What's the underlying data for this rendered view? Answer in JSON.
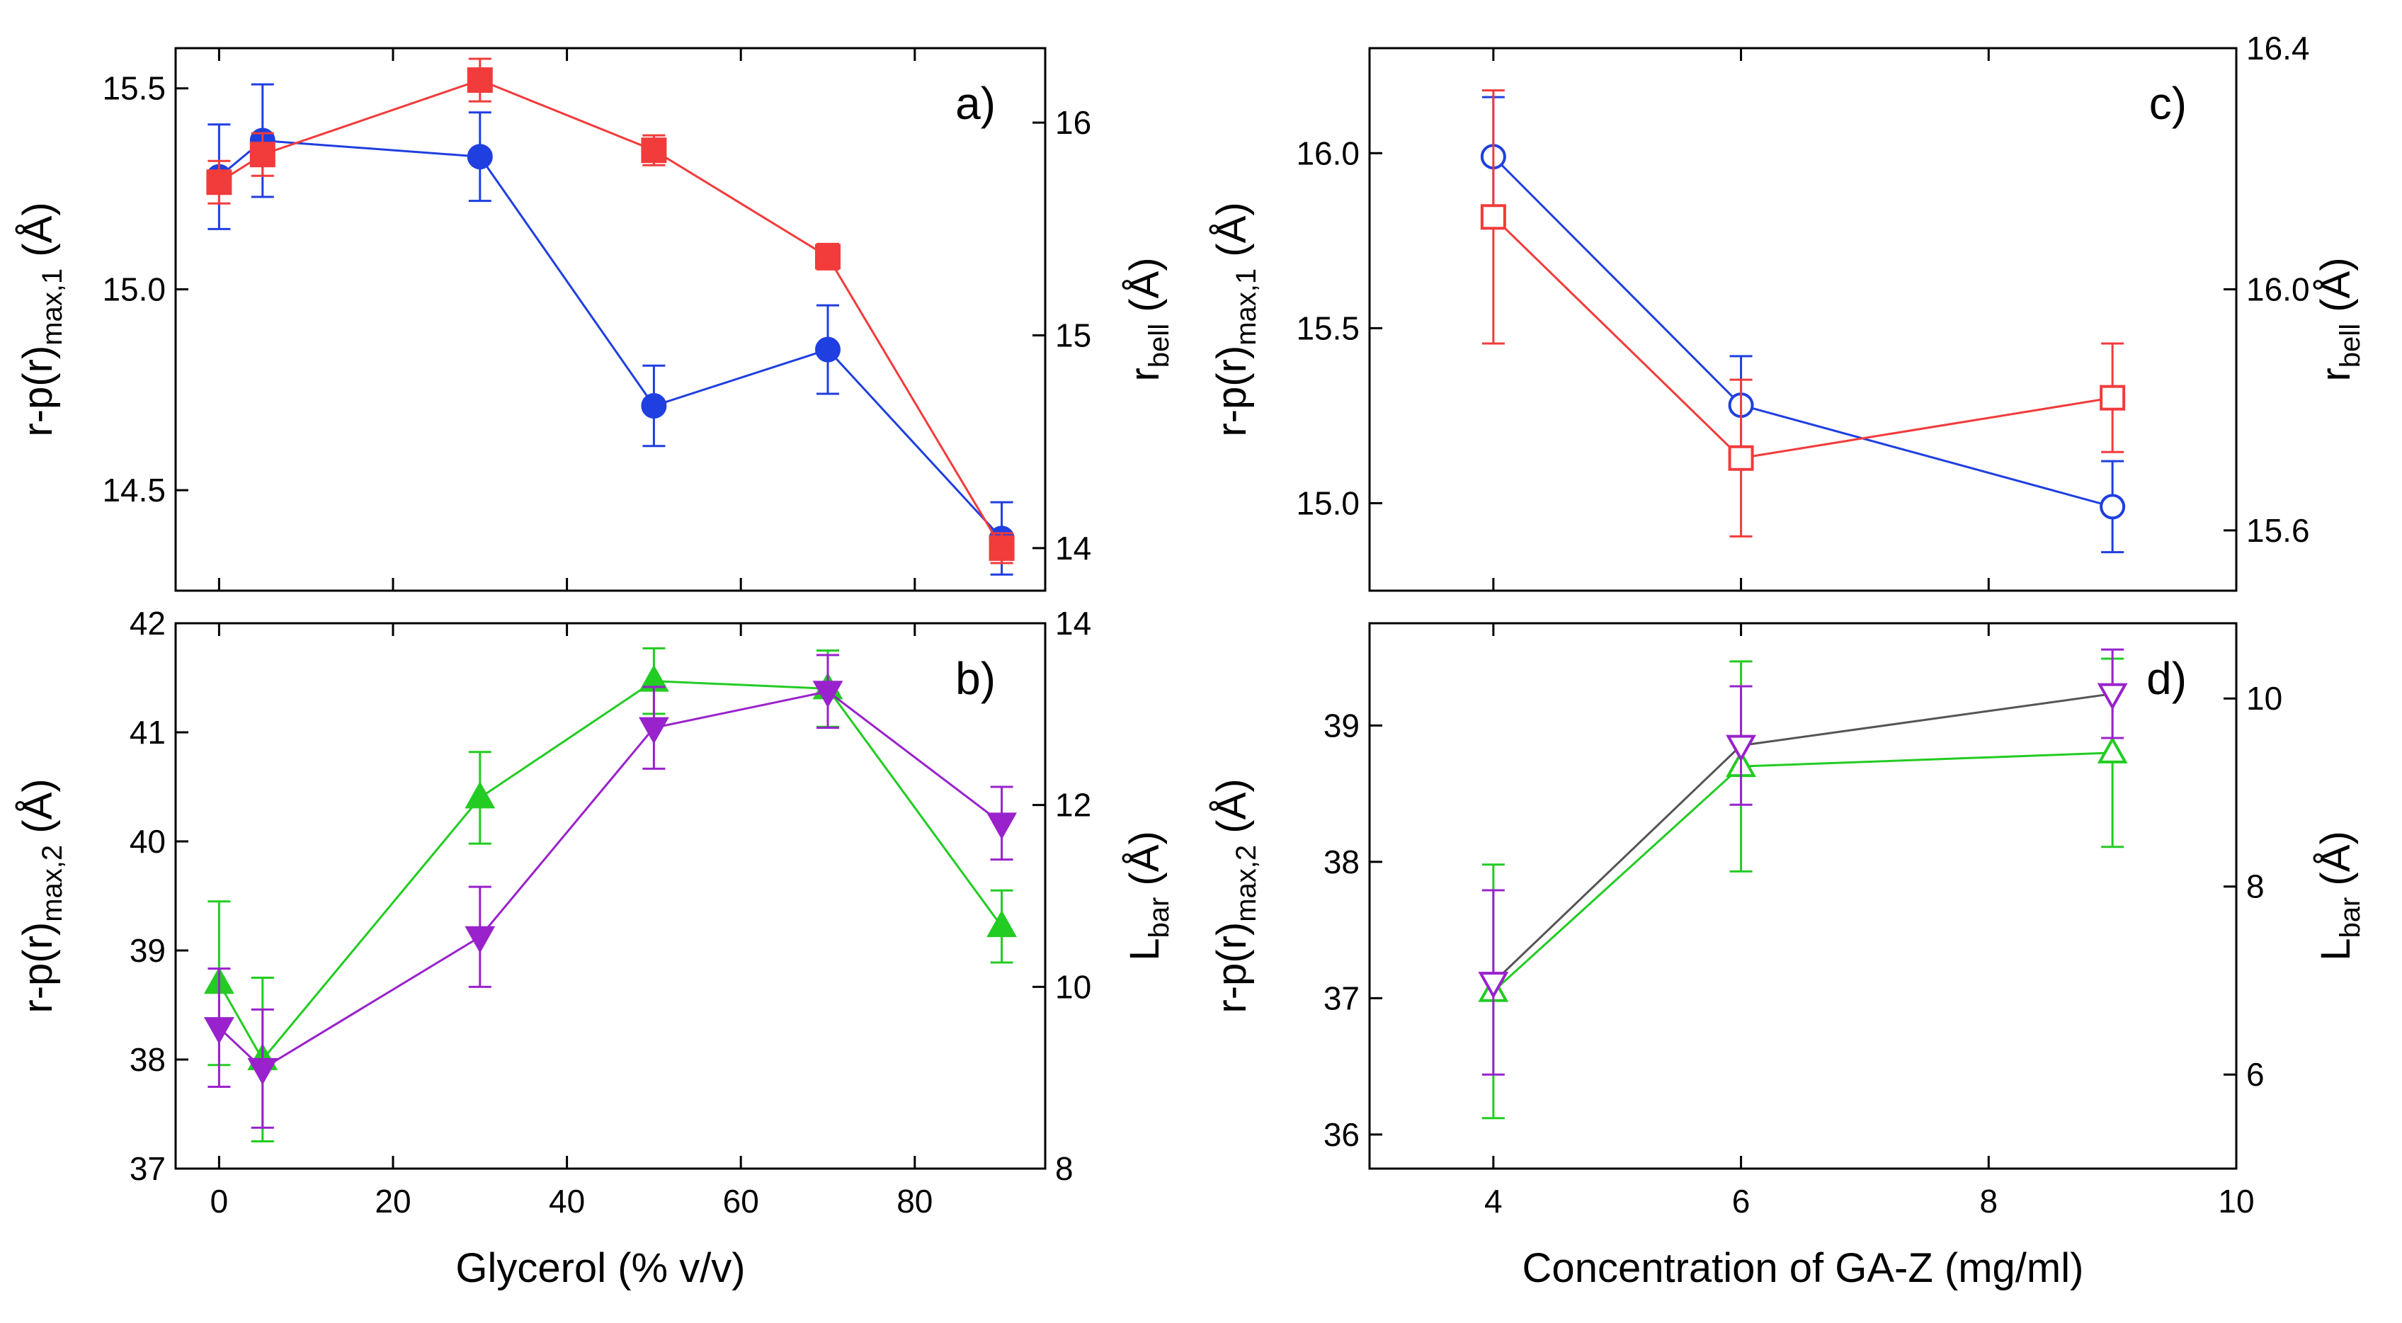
{
  "chart_data": [
    {
      "type": "line",
      "panel_label": "a)",
      "x": [
        0,
        5,
        30,
        50,
        70,
        90
      ],
      "xlim": [
        -5,
        95
      ],
      "xticks": [
        0,
        20,
        40,
        60,
        80
      ],
      "xticklabels": [
        "0",
        "20",
        "40",
        "60",
        "80"
      ],
      "show_xticklabels": false,
      "ylabel": {
        "main": "r-p(r)",
        "sub": "max,1",
        "unit": " (Å)"
      },
      "ylim": [
        14.25,
        15.6
      ],
      "yticks": [
        14.5,
        15.0,
        15.5
      ],
      "yticklabels": [
        "14.5",
        "15.0",
        "15.5"
      ],
      "y2label": {
        "main": "r",
        "sub": "bell",
        "unit": " (Å)"
      },
      "y2lim": [
        13.8,
        16.35
      ],
      "y2ticks": [
        14,
        15,
        16
      ],
      "y2ticklabels": [
        "14",
        "15",
        "16"
      ],
      "series": [
        {
          "name": "r-p(r) max,1",
          "axis": "left",
          "color": "#1f3fe0",
          "marker": "circle",
          "filled": true,
          "values": [
            15.28,
            15.37,
            15.33,
            14.71,
            14.85,
            14.38
          ],
          "errors": [
            0.13,
            0.14,
            0.11,
            0.1,
            0.11,
            0.09
          ]
        },
        {
          "name": "r bell",
          "axis": "right",
          "color": "#f23b3b",
          "marker": "square",
          "filled": true,
          "values": [
            15.72,
            15.85,
            16.2,
            15.87,
            15.37,
            14.0
          ],
          "errors": [
            0.1,
            0.1,
            0.1,
            0.07,
            0.06,
            0.07
          ]
        }
      ]
    },
    {
      "type": "line",
      "panel_label": "b)",
      "x": [
        0,
        5,
        30,
        50,
        70,
        90
      ],
      "xlim": [
        -5,
        95
      ],
      "xticks": [
        0,
        20,
        40,
        60,
        80
      ],
      "xticklabels": [
        "0",
        "20",
        "40",
        "60",
        "80"
      ],
      "show_xticklabels": true,
      "xlabel": "Glycerol (% v/v)",
      "ylabel": {
        "main": "r-p(r)",
        "sub": "max,2",
        "unit": " (Å)"
      },
      "ylim": [
        37,
        42
      ],
      "yticks": [
        37,
        38,
        39,
        40,
        41,
        42
      ],
      "yticklabels": [
        "37",
        "38",
        "39",
        "40",
        "41",
        "42"
      ],
      "y2label": {
        "main": "L",
        "sub": "bar",
        "unit": " (Å)"
      },
      "y2lim": [
        8,
        14
      ],
      "y2ticks": [
        8,
        10,
        12,
        14
      ],
      "y2ticklabels": [
        "8",
        "10",
        "12",
        "14"
      ],
      "series": [
        {
          "name": "r-p(r) max,2",
          "axis": "left",
          "color": "#22cc22",
          "marker": "triangle-up",
          "filled": true,
          "values": [
            38.7,
            38.0,
            40.4,
            41.47,
            41.4,
            39.22
          ],
          "errors": [
            0.75,
            0.75,
            0.42,
            0.3,
            0.35,
            0.33
          ]
        },
        {
          "name": "L bar",
          "axis": "right",
          "color": "#9922cc",
          "marker": "triangle-down",
          "filled": true,
          "values": [
            9.55,
            9.1,
            10.55,
            12.85,
            13.25,
            11.8
          ],
          "errors": [
            0.65,
            0.65,
            0.55,
            0.45,
            0.4,
            0.4
          ]
        }
      ]
    },
    {
      "type": "line",
      "panel_label": "c)",
      "x": [
        4,
        6,
        9
      ],
      "xlim": [
        3,
        10
      ],
      "xticks": [
        4,
        6,
        8,
        10
      ],
      "xticklabels": [
        "4",
        "6",
        "8",
        "10"
      ],
      "show_xticklabels": false,
      "ylabel": {
        "main": "r-p(r)",
        "sub": "max,1",
        "unit": " (Å)"
      },
      "ylim": [
        14.75,
        16.3
      ],
      "yticks": [
        15.0,
        15.5,
        16.0
      ],
      "yticklabels": [
        "15.0",
        "15.5",
        "16.0"
      ],
      "y2label": {
        "main": "r",
        "sub": "bell",
        "unit": " (Å)"
      },
      "y2lim": [
        15.5,
        16.4
      ],
      "y2ticks": [
        15.6,
        16.0,
        16.4
      ],
      "y2ticklabels": [
        "15.6",
        "16.0",
        "16.4"
      ],
      "series": [
        {
          "name": "r-p(r) max,1",
          "axis": "left",
          "color": "#1f3fe0",
          "marker": "circle",
          "filled": false,
          "values": [
            15.99,
            15.28,
            14.99
          ],
          "errors": [
            0.17,
            0.14,
            0.13
          ]
        },
        {
          "name": "r bell",
          "axis": "right",
          "color": "#f23b3b",
          "marker": "square",
          "filled": false,
          "values": [
            16.12,
            15.72,
            15.82
          ],
          "errors": [
            0.21,
            0.13,
            0.09
          ]
        }
      ]
    },
    {
      "type": "line",
      "panel_label": "d)",
      "x": [
        4,
        6,
        9
      ],
      "xlim": [
        3,
        10
      ],
      "xticks": [
        4,
        6,
        8,
        10
      ],
      "xticklabels": [
        "4",
        "6",
        "8",
        "10"
      ],
      "show_xticklabels": true,
      "xlabel": "Concentration of GA-Z (mg/ml)",
      "ylabel": {
        "main": "r-p(r)",
        "sub": "max,2",
        "unit": " (Å)"
      },
      "ylim": [
        35.75,
        39.75
      ],
      "yticks": [
        36,
        37,
        38,
        39
      ],
      "yticklabels": [
        "36",
        "37",
        "38",
        "39"
      ],
      "y2label": {
        "main": "L",
        "sub": "bar",
        "unit": " (Å)"
      },
      "y2lim": [
        5.0,
        10.8
      ],
      "y2ticks": [
        6,
        8,
        10
      ],
      "y2ticklabels": [
        "6",
        "8",
        "10"
      ],
      "series": [
        {
          "name": "r-p(r) max,2",
          "axis": "left",
          "color": "#22cc22",
          "marker": "triangle-up",
          "filled": false,
          "values": [
            37.05,
            38.7,
            38.8
          ],
          "errors": [
            0.93,
            0.77,
            0.69
          ]
        },
        {
          "name": "L bar",
          "axis": "right",
          "color": "#9922cc",
          "marker": "triangle-down",
          "filled": false,
          "line_color": "#555555",
          "values": [
            6.98,
            9.5,
            10.05
          ],
          "errors": [
            0.98,
            0.63,
            0.47
          ]
        }
      ]
    }
  ]
}
